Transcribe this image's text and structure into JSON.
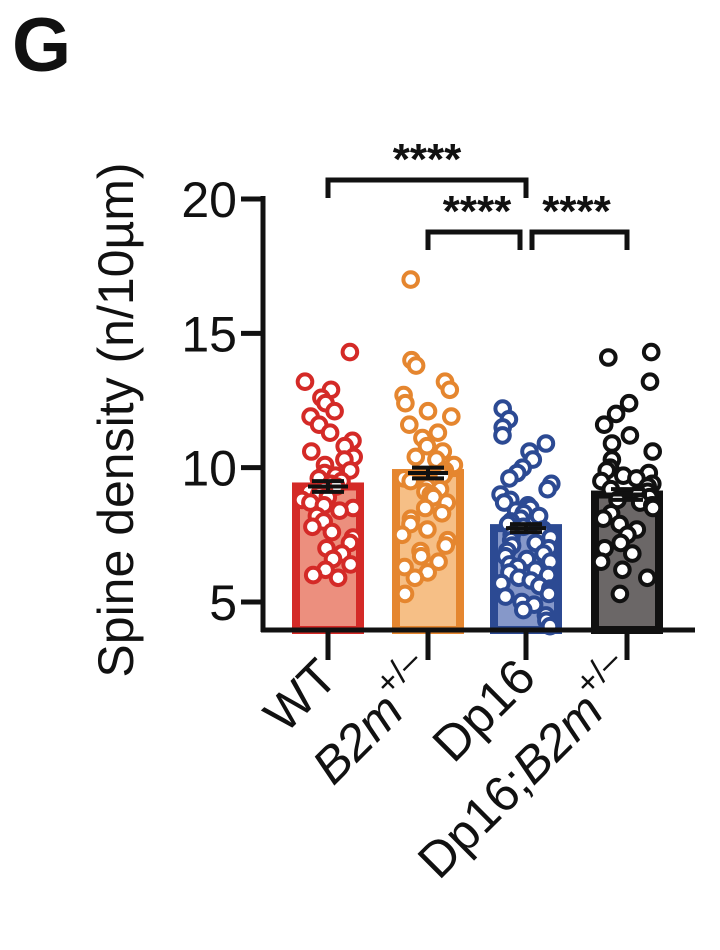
{
  "panel_label": "G",
  "chart_data": {
    "type": "bar",
    "title": "",
    "ylabel": "Spine density (n/10µm)",
    "ylim": [
      4,
      20.5
    ],
    "yticks": [
      5,
      10,
      15,
      20
    ],
    "error_bars": "mean ± SEM",
    "categories": [
      {
        "label": "WT",
        "superscript": "",
        "italic_part": ""
      },
      {
        "label": "B2m",
        "superscript": "+/–",
        "italic_part": "B2m"
      },
      {
        "label": "Dp16",
        "superscript": "",
        "italic_part": ""
      },
      {
        "label": "Dp16;B2m",
        "superscript": "+/–",
        "italic_part": "B2m"
      }
    ],
    "series": [
      {
        "category": "WT",
        "mean": 9.3,
        "sem": 0.2,
        "edge_color": "#d42a27",
        "fill_color": "#ec8f7e",
        "points": [
          14.3,
          13.2,
          12.9,
          12.6,
          12.4,
          12.1,
          11.9,
          11.6,
          11.3,
          11.0,
          10.8,
          10.6,
          10.4,
          10.3,
          10.1,
          9.9,
          9.8,
          9.7,
          9.6,
          9.5,
          9.4,
          9.3,
          9.2,
          9.1,
          9.0,
          8.9,
          8.8,
          8.7,
          8.6,
          8.5,
          8.4,
          8.2,
          8.0,
          7.8,
          7.6,
          7.4,
          7.2,
          7.0,
          6.8,
          6.6,
          6.4,
          6.2,
          6.0,
          5.9
        ]
      },
      {
        "category": "B2m+/–",
        "mean": 9.8,
        "sem": 0.2,
        "edge_color": "#e5862f",
        "fill_color": "#f6bf86",
        "points": [
          17.0,
          14.0,
          13.8,
          13.2,
          12.9,
          12.7,
          12.4,
          12.1,
          11.9,
          11.6,
          11.3,
          11.1,
          10.8,
          10.6,
          10.4,
          10.3,
          10.1,
          9.9,
          9.8,
          9.7,
          9.6,
          9.5,
          9.4,
          9.3,
          9.2,
          9.1,
          9.0,
          8.9,
          8.7,
          8.5,
          8.3,
          8.1,
          7.9,
          7.7,
          7.5,
          7.3,
          7.1,
          6.9,
          6.7,
          6.5,
          6.3,
          6.1,
          5.9,
          5.3
        ]
      },
      {
        "category": "Dp16",
        "mean": 7.75,
        "sem": 0.15,
        "edge_color": "#2c4a93",
        "fill_color": "#8698c9",
        "points": [
          12.2,
          11.8,
          11.5,
          11.2,
          10.9,
          10.6,
          10.3,
          10.0,
          9.8,
          9.6,
          9.4,
          9.2,
          9.0,
          8.8,
          8.7,
          8.6,
          8.5,
          8.4,
          8.3,
          8.2,
          8.1,
          8.0,
          7.9,
          7.8,
          7.7,
          7.6,
          7.5,
          7.4,
          7.3,
          7.2,
          7.1,
          7.0,
          6.9,
          6.8,
          6.7,
          6.6,
          6.5,
          6.4,
          6.3,
          6.2,
          6.1,
          6.0,
          5.9,
          5.8,
          5.7,
          5.6,
          5.5,
          5.4,
          5.3,
          5.2,
          5.0,
          4.9,
          4.7,
          4.5,
          4.3,
          4.1
        ]
      },
      {
        "category": "Dp16;B2m+/–",
        "mean": 9.0,
        "sem": 0.2,
        "edge_color": "#111111",
        "fill_color": "#6b6767",
        "points": [
          14.3,
          14.1,
          13.2,
          12.4,
          12.0,
          11.6,
          11.2,
          10.9,
          10.6,
          10.3,
          10.0,
          9.9,
          9.8,
          9.7,
          9.6,
          9.5,
          9.4,
          9.3,
          9.2,
          9.1,
          9.0,
          8.9,
          8.8,
          8.7,
          8.6,
          8.5,
          8.3,
          8.1,
          7.9,
          7.7,
          7.5,
          7.2,
          7.0,
          6.8,
          6.5,
          6.2,
          5.9,
          5.3
        ]
      }
    ],
    "significance": [
      {
        "from": "WT",
        "to": "Dp16",
        "label": "****"
      },
      {
        "from": "B2m+/–",
        "to": "Dp16",
        "label": "****"
      },
      {
        "from": "Dp16",
        "to": "Dp16;B2m+/–",
        "label": "****"
      }
    ]
  }
}
